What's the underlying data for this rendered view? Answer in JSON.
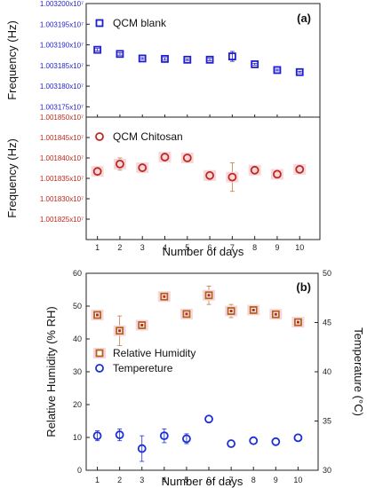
{
  "chart_data": [
    {
      "type": "scatter",
      "panel_label": "(a)",
      "xlabel": "Number of days",
      "x": [
        1,
        2,
        3,
        4,
        5,
        6,
        7,
        8,
        9,
        10
      ],
      "subplots": [
        {
          "ylabel": "Frequency (Hz)",
          "ylim": [
            1.0031725,
            1.0032
          ],
          "yticks": [
            "1.003175x10⁷",
            "1.003180x10⁷",
            "1.003185x10⁷",
            "1.003190x10⁷",
            "1.003195x10⁷",
            "1.003200x10⁷"
          ],
          "ytick_values": [
            1.003175,
            1.00318,
            1.003185,
            1.00319,
            1.003195,
            1.0032
          ],
          "color": "#1f1fd0",
          "legend_position": "top-left",
          "series": [
            {
              "name": "QCM blank",
              "marker": "square",
              "values": [
                1.0031888,
                1.0031878,
                1.0031867,
                1.0031866,
                1.0031864,
                1.0031864,
                1.0031872,
                1.0031853,
                1.0031839,
                1.0031834
              ],
              "errors": [
                3e-07,
                3e-07,
                2e-07,
                3e-07,
                2e-07,
                3e-07,
                1.2e-06,
                2e-07,
                2e-07,
                2e-07
              ]
            }
          ]
        },
        {
          "ylabel": "Frequency (Hz)",
          "ylim": [
            1.00182,
            1.00185
          ],
          "yticks": [
            "1.001825x10⁷",
            "1.001830x10⁷",
            "1.001835x10⁷",
            "1.001840x10⁷",
            "1.001845x10⁷",
            "1.001850x10⁷"
          ],
          "ytick_values": [
            1.001825,
            1.00183,
            1.001835,
            1.00184,
            1.001845,
            1.00185
          ],
          "color": "#c0281d",
          "legend_position": "top-left",
          "series": [
            {
              "name": "QCM Chitosan",
              "marker": "circle",
              "values": [
                1.0018367,
                1.0018385,
                1.0018376,
                1.0018402,
                1.00184,
                1.0018357,
                1.0018353,
                1.001837,
                1.001836,
                1.0018372
              ],
              "errors": [
                5e-07,
                1.5e-06,
                7e-07,
                4e-07,
                5e-07,
                1.2e-06,
                3.5e-06,
                5e-07,
                6e-07,
                4e-07
              ]
            }
          ]
        }
      ],
      "grid": false
    },
    {
      "type": "scatter",
      "panel_label": "(b)",
      "xlabel": "Number of days",
      "ylabel": "Relative Humidity (% RH)",
      "ylabel_right": "Temperature (°C)",
      "x": [
        1,
        2,
        3,
        4,
        5,
        6,
        7,
        8,
        9,
        10
      ],
      "ylim": [
        0,
        60
      ],
      "yticks": [
        0,
        10,
        20,
        30,
        40,
        50,
        60
      ],
      "ylim_right": [
        30,
        50
      ],
      "yticks_right": [
        30,
        35,
        40,
        45,
        50
      ],
      "legend_position": "center-left",
      "series": [
        {
          "name": "Relative Humidity",
          "axis": "left",
          "marker": "square",
          "color": "#b5601e",
          "values": [
            47.3,
            42.5,
            44.2,
            52.9,
            47.6,
            53.3,
            48.5,
            48.8,
            47.5,
            45.1
          ],
          "errors": [
            1.3,
            4.5,
            1.5,
            1.0,
            0.8,
            2.8,
            2.0,
            0.6,
            1.4,
            0.7
          ]
        },
        {
          "name": "Tempereture",
          "axis": "right",
          "marker": "circle",
          "color": "#1c2ed8",
          "values": [
            33.5,
            33.6,
            32.2,
            33.5,
            33.2,
            35.2,
            32.7,
            33.0,
            32.9,
            33.3
          ],
          "errors": [
            0.5,
            0.6,
            1.3,
            0.7,
            0.5,
            0.0,
            0.0,
            0.0,
            0.0,
            0.0
          ]
        }
      ],
      "grid": false
    }
  ]
}
